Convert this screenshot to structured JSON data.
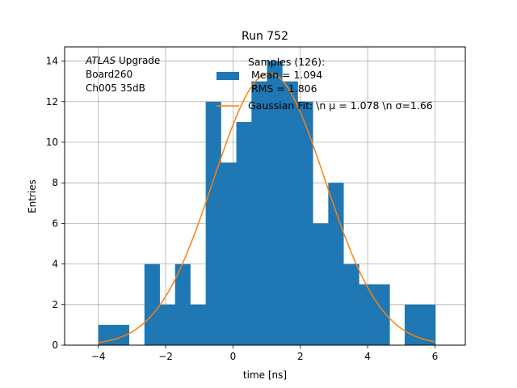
{
  "chart_data": {
    "type": "histogram",
    "title": "Run 752",
    "xlabel": "time [ns]",
    "ylabel": "Entries",
    "xlim": [
      -5,
      6.9
    ],
    "ylim": [
      0,
      14.7
    ],
    "xticks": [
      -4,
      -2,
      0,
      2,
      4,
      6
    ],
    "xtick_labels": [
      "−4",
      "−2",
      "0",
      "2",
      "4",
      "6"
    ],
    "yticks": [
      0,
      2,
      4,
      6,
      8,
      10,
      12,
      14
    ],
    "ytick_labels": [
      "0",
      "2",
      "4",
      "6",
      "8",
      "10",
      "12",
      "14"
    ],
    "grid": true,
    "bar_color": "#1f77b4",
    "fit_color": "#ff7f0e",
    "bins": [
      {
        "x0": -4.0,
        "x1": -3.54,
        "count": 1
      },
      {
        "x0": -3.54,
        "x1": -3.09,
        "count": 1
      },
      {
        "x0": -3.09,
        "x1": -2.63,
        "count": 0
      },
      {
        "x0": -2.63,
        "x1": -2.18,
        "count": 4
      },
      {
        "x0": -2.18,
        "x1": -1.72,
        "count": 2
      },
      {
        "x0": -1.72,
        "x1": -1.27,
        "count": 4
      },
      {
        "x0": -1.27,
        "x1": -0.81,
        "count": 2
      },
      {
        "x0": -0.81,
        "x1": -0.36,
        "count": 12
      },
      {
        "x0": -0.36,
        "x1": 0.1,
        "count": 9
      },
      {
        "x0": 0.1,
        "x1": 0.55,
        "count": 11
      },
      {
        "x0": 0.55,
        "x1": 1.01,
        "count": 13
      },
      {
        "x0": 1.01,
        "x1": 1.46,
        "count": 14
      },
      {
        "x0": 1.46,
        "x1": 1.92,
        "count": 13
      },
      {
        "x0": 1.92,
        "x1": 2.37,
        "count": 12
      },
      {
        "x0": 2.37,
        "x1": 2.83,
        "count": 6
      },
      {
        "x0": 2.83,
        "x1": 3.28,
        "count": 8
      },
      {
        "x0": 3.28,
        "x1": 3.74,
        "count": 4
      },
      {
        "x0": 3.74,
        "x1": 4.19,
        "count": 3
      },
      {
        "x0": 4.19,
        "x1": 4.65,
        "count": 3
      },
      {
        "x0": 4.65,
        "x1": 5.1,
        "count": 0
      },
      {
        "x0": 5.1,
        "x1": 5.56,
        "count": 2
      },
      {
        "x0": 5.56,
        "x1": 6.01,
        "count": 2
      }
    ],
    "fit": {
      "name": "Gaussian Fit",
      "mu": 1.078,
      "sigma": 1.66,
      "amplitude": 13.4,
      "x_range": [
        -4.0,
        6.0
      ]
    },
    "annotations": {
      "atlas": "ATLAS",
      "upgrade": " Upgrade",
      "board": " Board260",
      "channel": " Ch005 35dB"
    },
    "legend": {
      "samples_line1": "Samples (126):",
      "samples_line2": " Mean = 1.094",
      "samples_line3": " RMS = 1.806",
      "fit_label": "Gaussian Fit: \\n μ = 1.078 \\n σ=1.66"
    }
  }
}
